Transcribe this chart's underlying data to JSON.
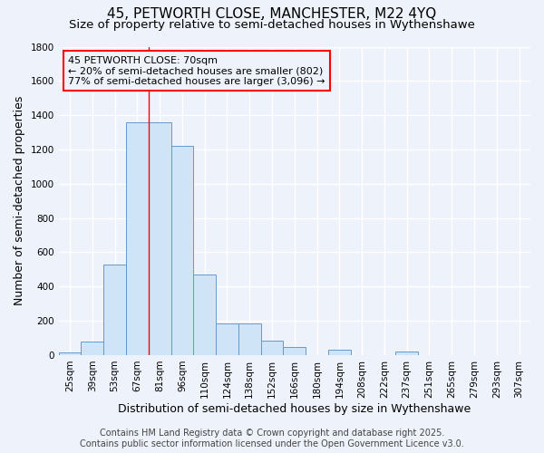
{
  "title": "45, PETWORTH CLOSE, MANCHESTER, M22 4YQ",
  "subtitle": "Size of property relative to semi-detached houses in Wythenshawe",
  "xlabel": "Distribution of semi-detached houses by size in Wythenshawe",
  "ylabel": "Number of semi-detached properties",
  "footer_line1": "Contains HM Land Registry data © Crown copyright and database right 2025.",
  "footer_line2": "Contains public sector information licensed under the Open Government Licence v3.0.",
  "bin_labels": [
    "25sqm",
    "39sqm",
    "53sqm",
    "67sqm",
    "81sqm",
    "96sqm",
    "110sqm",
    "124sqm",
    "138sqm",
    "152sqm",
    "166sqm",
    "180sqm",
    "194sqm",
    "208sqm",
    "222sqm",
    "237sqm",
    "251sqm",
    "265sqm",
    "279sqm",
    "293sqm",
    "307sqm"
  ],
  "bar_values": [
    15,
    80,
    530,
    1360,
    1360,
    1220,
    470,
    185,
    185,
    85,
    50,
    0,
    30,
    0,
    0,
    20,
    0,
    0,
    0,
    0,
    0
  ],
  "bar_color": "#d0e4f7",
  "bar_edge_color": "#6699cc",
  "ylim": [
    0,
    1800
  ],
  "yticks": [
    0,
    200,
    400,
    600,
    800,
    1000,
    1200,
    1400,
    1600,
    1800
  ],
  "red_line_x": 3.5,
  "annotation_line1": "45 PETWORTH CLOSE: 70sqm",
  "annotation_line2": "← 20% of semi-detached houses are smaller (802)",
  "annotation_line3": "77% of semi-detached houses are larger (3,096) →",
  "background_color": "#eef2fb",
  "grid_color": "#ffffff",
  "title_fontsize": 11,
  "subtitle_fontsize": 9.5,
  "axis_label_fontsize": 9,
  "tick_fontsize": 7.5,
  "footer_fontsize": 7
}
